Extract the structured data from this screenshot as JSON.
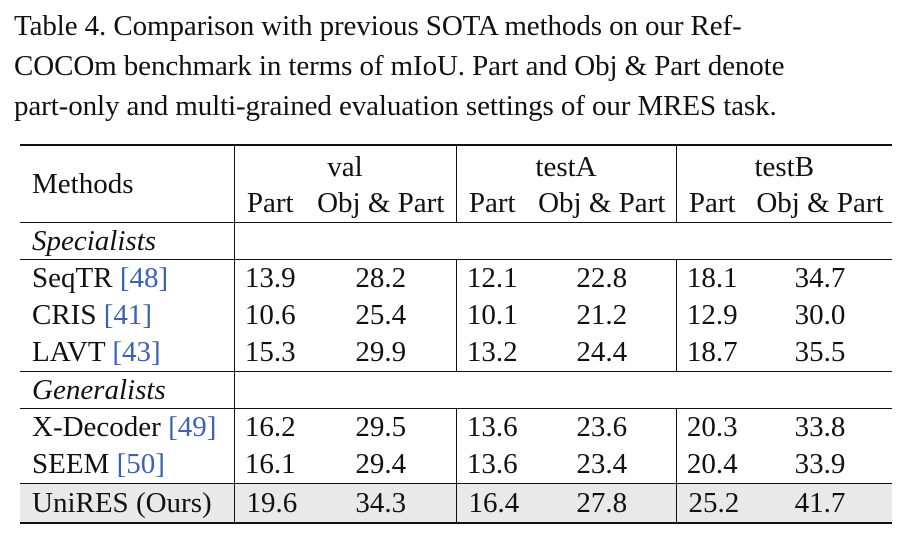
{
  "caption": {
    "line1": "Table 4.  Comparison with previous SOTA methods on our Ref-",
    "line2": "COCOm benchmark in terms of mIoU. Part and Obj & Part denote",
    "line3": "part-only and multi-grained evaluation settings of our MRES task."
  },
  "header": {
    "methods": "Methods",
    "groups": [
      "val",
      "testA",
      "testB"
    ],
    "sub": [
      "Part",
      "Obj & Part"
    ]
  },
  "sections": {
    "specialists": "Specialists",
    "generalists": "Generalists"
  },
  "rows": [
    {
      "name": "SeqTR",
      "cite": "[48]",
      "vals": [
        "13.9",
        "28.2",
        "12.1",
        "22.8",
        "18.1",
        "34.7"
      ]
    },
    {
      "name": "CRIS",
      "cite": "[41]",
      "vals": [
        "10.6",
        "25.4",
        "10.1",
        "21.2",
        "12.9",
        "30.0"
      ]
    },
    {
      "name": "LAVT",
      "cite": "[43]",
      "vals": [
        "15.3",
        "29.9",
        "13.2",
        "24.4",
        "18.7",
        "35.5"
      ]
    },
    {
      "name": "X-Decoder",
      "cite": "[49]",
      "vals": [
        "16.2",
        "29.5",
        "13.6",
        "23.6",
        "20.3",
        "33.8"
      ]
    },
    {
      "name": "SEEM",
      "cite": "[50]",
      "vals": [
        "16.1",
        "29.4",
        "13.6",
        "23.4",
        "20.4",
        "33.9"
      ]
    }
  ],
  "ours": {
    "name": "UniRES",
    "suffix": "(Ours)",
    "vals": [
      "19.6",
      "34.3",
      "16.4",
      "27.8",
      "25.2",
      "41.7"
    ]
  },
  "colors": {
    "citation": "#3a63b5",
    "highlight_row": "#e9e9e9"
  }
}
